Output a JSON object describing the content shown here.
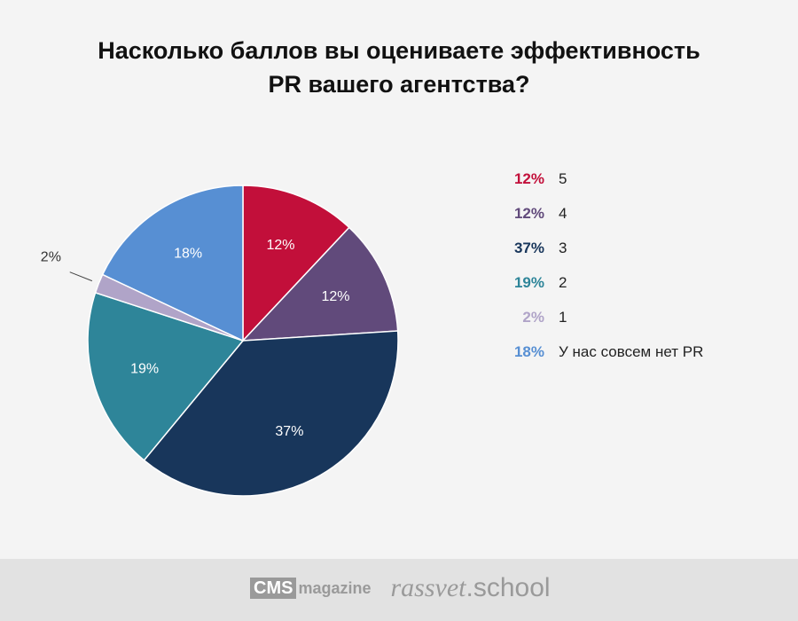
{
  "title_lines": [
    "Насколько баллов вы оцениваете эффективность",
    "PR вашего агентства?"
  ],
  "chart_data": {
    "type": "pie",
    "title": "Насколько баллов вы оцениваете эффективность PR вашего агентства?",
    "slices": [
      {
        "label": "5",
        "value": 12,
        "pct_label": "12%",
        "color": "#c20f3a"
      },
      {
        "label": "4",
        "value": 12,
        "pct_label": "12%",
        "color": "#614a7b"
      },
      {
        "label": "3",
        "value": 37,
        "pct_label": "37%",
        "color": "#18365b"
      },
      {
        "label": "2",
        "value": 19,
        "pct_label": "19%",
        "color": "#2e8599"
      },
      {
        "label": "1",
        "value": 2,
        "pct_label": "2%",
        "color": "#b0a4c8"
      },
      {
        "label": "У нас совсем нет PR",
        "value": 18,
        "pct_label": "18%",
        "color": "#578fd3"
      }
    ],
    "legend_position": "right",
    "start": "top, clockwise"
  },
  "footer": {
    "logo1_box": "CMS",
    "logo1_text": "magazine",
    "logo2_italic": "rassvet",
    "logo2_regular": ".school"
  }
}
